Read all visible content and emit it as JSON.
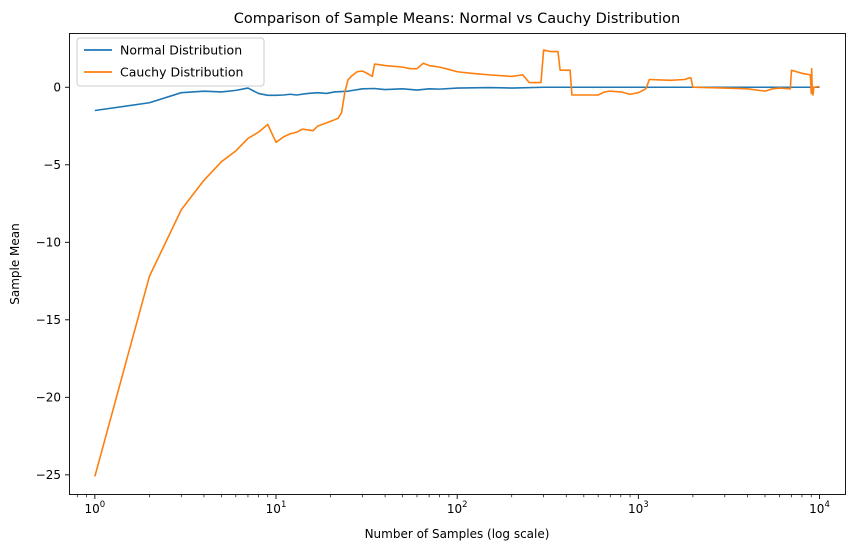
{
  "chart_data": {
    "type": "line",
    "title": "Comparison of Sample Means: Normal vs Cauchy Distribution",
    "xlabel": "Number of Samples (log scale)",
    "ylabel": "Sample Mean",
    "x_scale": "log",
    "xlim": [
      0.72,
      14000
    ],
    "ylim": [
      -26.3,
      3.5
    ],
    "x_ticks": [
      {
        "value": 1,
        "base": "10",
        "exp": "0"
      },
      {
        "value": 10,
        "base": "10",
        "exp": "1"
      },
      {
        "value": 100,
        "base": "10",
        "exp": "2"
      },
      {
        "value": 1000,
        "base": "10",
        "exp": "3"
      },
      {
        "value": 10000,
        "base": "10",
        "exp": "4"
      }
    ],
    "y_ticks": [
      {
        "value": 0,
        "label": "0"
      },
      {
        "value": -5,
        "label": "−5"
      },
      {
        "value": -10,
        "label": "−10"
      },
      {
        "value": -15,
        "label": "−15"
      },
      {
        "value": -20,
        "label": "−20"
      },
      {
        "value": -25,
        "label": "−25"
      }
    ],
    "grid": false,
    "legend": "upper-left",
    "series": [
      {
        "name": "Normal Distribution",
        "color": "#1f77b4",
        "points": [
          [
            1,
            -1.5
          ],
          [
            2,
            -1.0
          ],
          [
            3,
            -0.35
          ],
          [
            4,
            -0.25
          ],
          [
            5,
            -0.3
          ],
          [
            6,
            -0.2
          ],
          [
            7,
            -0.05
          ],
          [
            8,
            -0.4
          ],
          [
            9,
            -0.52
          ],
          [
            10,
            -0.52
          ],
          [
            11,
            -0.5
          ],
          [
            12,
            -0.45
          ],
          [
            13,
            -0.5
          ],
          [
            15,
            -0.4
          ],
          [
            17,
            -0.35
          ],
          [
            19,
            -0.4
          ],
          [
            21,
            -0.3
          ],
          [
            25,
            -0.25
          ],
          [
            30,
            -0.1
          ],
          [
            35,
            -0.08
          ],
          [
            40,
            -0.15
          ],
          [
            50,
            -0.1
          ],
          [
            60,
            -0.18
          ],
          [
            70,
            -0.1
          ],
          [
            80,
            -0.12
          ],
          [
            100,
            -0.05
          ],
          [
            150,
            -0.02
          ],
          [
            200,
            -0.05
          ],
          [
            300,
            0.0
          ],
          [
            500,
            0.0
          ],
          [
            1000,
            0.0
          ],
          [
            3000,
            0.0
          ],
          [
            10000,
            0.0
          ]
        ]
      },
      {
        "name": "Cauchy Distribution",
        "color": "#ff7f0e",
        "points": [
          [
            1,
            -25.1
          ],
          [
            2,
            -12.2
          ],
          [
            3,
            -7.9
          ],
          [
            4,
            -6.0
          ],
          [
            5,
            -4.8
          ],
          [
            6,
            -4.1
          ],
          [
            7,
            -3.3
          ],
          [
            8,
            -2.9
          ],
          [
            9,
            -2.4
          ],
          [
            10,
            -3.55
          ],
          [
            11,
            -3.2
          ],
          [
            12,
            -3.0
          ],
          [
            13,
            -2.9
          ],
          [
            14,
            -2.7
          ],
          [
            15,
            -2.75
          ],
          [
            16,
            -2.8
          ],
          [
            17,
            -2.5
          ],
          [
            19,
            -2.3
          ],
          [
            21,
            -2.1
          ],
          [
            22,
            -2.0
          ],
          [
            23,
            -1.65
          ],
          [
            24,
            -0.3
          ],
          [
            25,
            0.5
          ],
          [
            26,
            0.7
          ],
          [
            28,
            1.0
          ],
          [
            30,
            1.05
          ],
          [
            33,
            0.8
          ],
          [
            34,
            0.7
          ],
          [
            35,
            1.5
          ],
          [
            40,
            1.4
          ],
          [
            50,
            1.3
          ],
          [
            55,
            1.2
          ],
          [
            60,
            1.2
          ],
          [
            65,
            1.55
          ],
          [
            70,
            1.4
          ],
          [
            80,
            1.3
          ],
          [
            90,
            1.15
          ],
          [
            100,
            1.0
          ],
          [
            120,
            0.9
          ],
          [
            150,
            0.8
          ],
          [
            200,
            0.7
          ],
          [
            230,
            0.8
          ],
          [
            250,
            0.3
          ],
          [
            270,
            0.3
          ],
          [
            290,
            0.3
          ],
          [
            300,
            2.4
          ],
          [
            330,
            2.3
          ],
          [
            360,
            2.3
          ],
          [
            370,
            1.1
          ],
          [
            420,
            1.1
          ],
          [
            430,
            -0.5
          ],
          [
            500,
            -0.5
          ],
          [
            600,
            -0.5
          ],
          [
            650,
            -0.3
          ],
          [
            700,
            -0.25
          ],
          [
            800,
            -0.3
          ],
          [
            900,
            -0.45
          ],
          [
            1000,
            -0.35
          ],
          [
            1100,
            -0.1
          ],
          [
            1150,
            0.5
          ],
          [
            1500,
            0.45
          ],
          [
            1800,
            0.5
          ],
          [
            1900,
            0.6
          ],
          [
            1950,
            0.6
          ],
          [
            2000,
            0.0
          ],
          [
            3000,
            -0.05
          ],
          [
            4000,
            -0.1
          ],
          [
            5000,
            -0.25
          ],
          [
            5500,
            -0.1
          ],
          [
            6000,
            -0.05
          ],
          [
            6900,
            -0.1
          ],
          [
            7000,
            1.1
          ],
          [
            8000,
            0.9
          ],
          [
            8900,
            0.8
          ],
          [
            9000,
            -0.4
          ],
          [
            9050,
            1.2
          ],
          [
            9100,
            0.1
          ],
          [
            9200,
            -0.5
          ],
          [
            9300,
            0.0
          ],
          [
            10000,
            0.05
          ]
        ]
      }
    ]
  }
}
